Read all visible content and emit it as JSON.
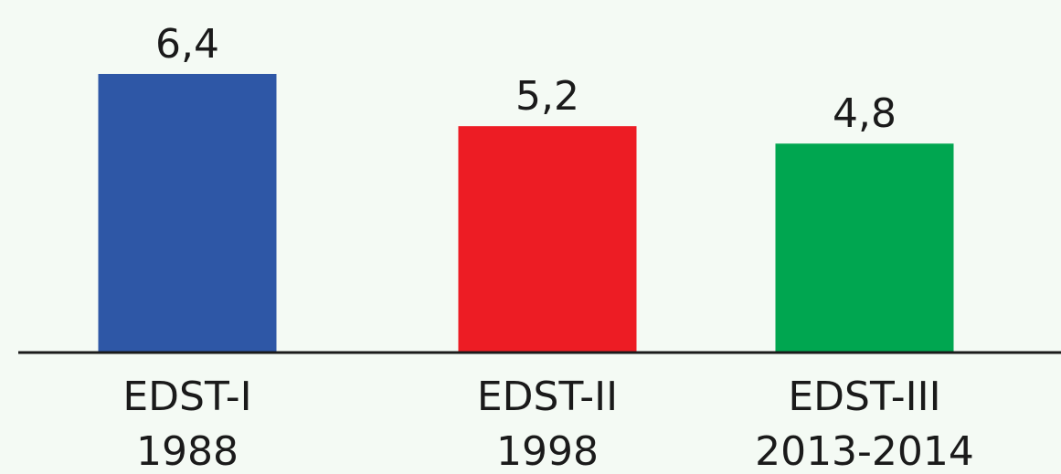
{
  "chart_data": {
    "type": "bar",
    "categories": [
      [
        "EDST-I",
        "1988"
      ],
      [
        "EDST-II",
        "1998"
      ],
      [
        "EDST-III",
        "2013-2014"
      ]
    ],
    "values": [
      6.4,
      5.2,
      4.8
    ],
    "value_labels": [
      "6,4",
      "5,2",
      "4,8"
    ],
    "colors": [
      "#2e57a6",
      "#ed1c24",
      "#00a650"
    ]
  }
}
